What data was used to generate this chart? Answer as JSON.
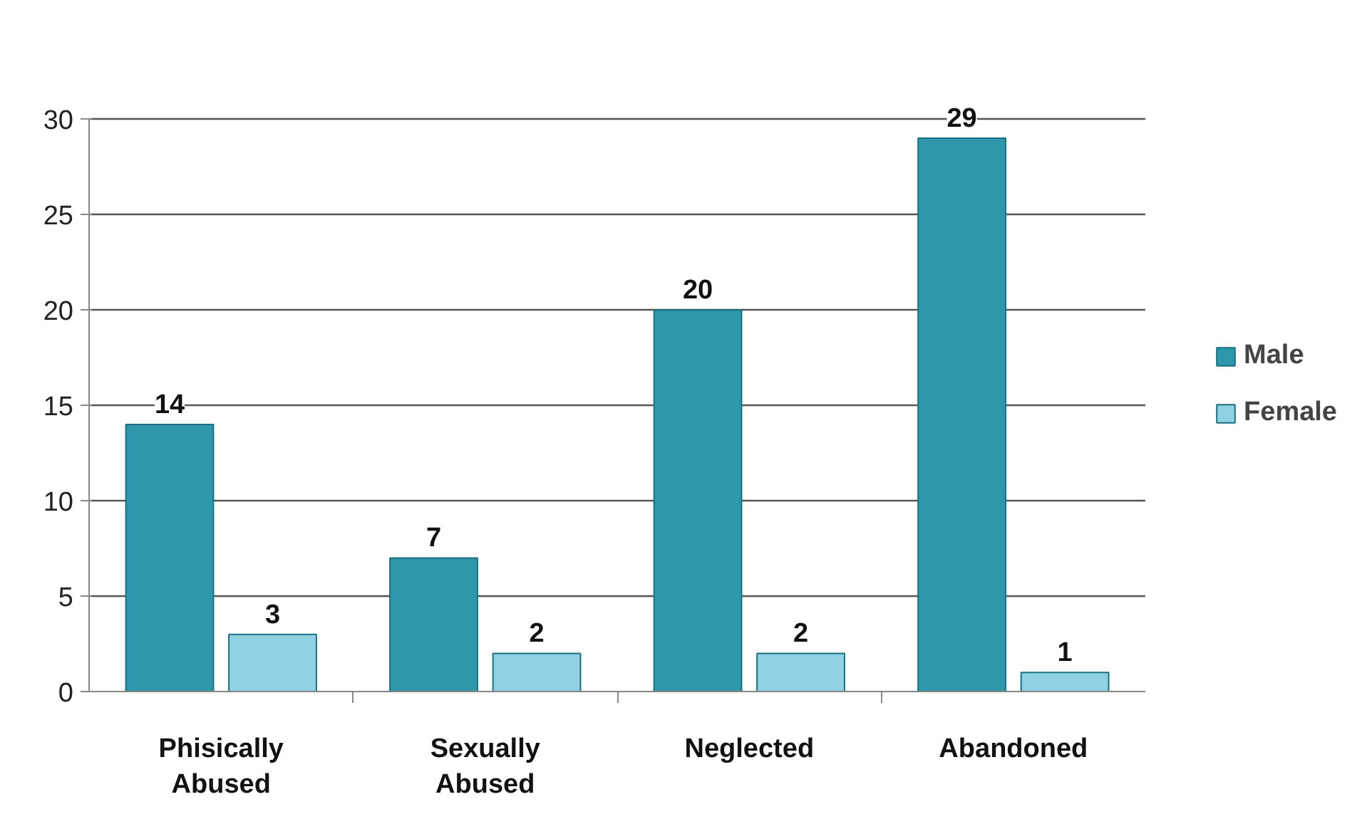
{
  "chart_data": {
    "type": "bar",
    "categories": [
      "Phisically Abused",
      "Sexually Abused",
      "Neglected",
      "Abandoned"
    ],
    "series": [
      {
        "name": "Male",
        "color": "#2e97ab",
        "values": [
          14,
          7,
          20,
          29
        ]
      },
      {
        "name": "Female",
        "color": "#8fd0e2",
        "values": [
          3,
          2,
          2,
          1
        ]
      }
    ],
    "ylim": [
      0,
      30
    ],
    "yticks": [
      0,
      5,
      10,
      15,
      20,
      25,
      30
    ],
    "grid": "y",
    "legend": "right",
    "data_labels": true
  }
}
